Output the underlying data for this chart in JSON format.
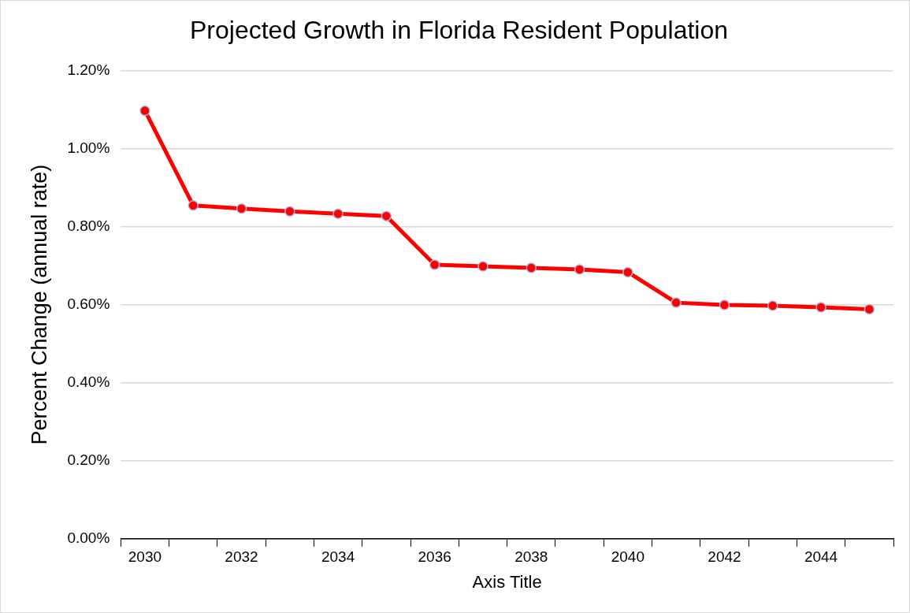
{
  "chart_data": {
    "type": "line",
    "title": "Projected Growth in Florida Resident Population",
    "xlabel": "Axis Title",
    "ylabel": "Percent Change (annual rate)",
    "categories": [
      "2030",
      null,
      "2032",
      null,
      "2034",
      null,
      "2036",
      null,
      "2038",
      null,
      "2040",
      null,
      "2042",
      null,
      "2044",
      null
    ],
    "series": [
      {
        "color": "#ff0000",
        "values": [
          1.097,
          0.854,
          0.846,
          0.839,
          0.833,
          0.827,
          0.702,
          0.698,
          0.694,
          0.69,
          0.683,
          0.605,
          0.599,
          0.597,
          0.593,
          0.588
        ]
      }
    ],
    "ylim": [
      0,
      1.2
    ],
    "yticks": [
      {
        "value": 0,
        "label": "0.00%"
      },
      {
        "value": 0.2,
        "label": "0.20%"
      },
      {
        "value": 0.4,
        "label": "0.40%"
      },
      {
        "value": 0.6,
        "label": "0.60%"
      },
      {
        "value": 0.8,
        "label": "0.80%"
      },
      {
        "value": 1.0,
        "label": "1.00%"
      },
      {
        "value": 1.2,
        "label": "1.20%"
      }
    ],
    "grid": "y",
    "marker": "circle",
    "line_style": "solid"
  }
}
